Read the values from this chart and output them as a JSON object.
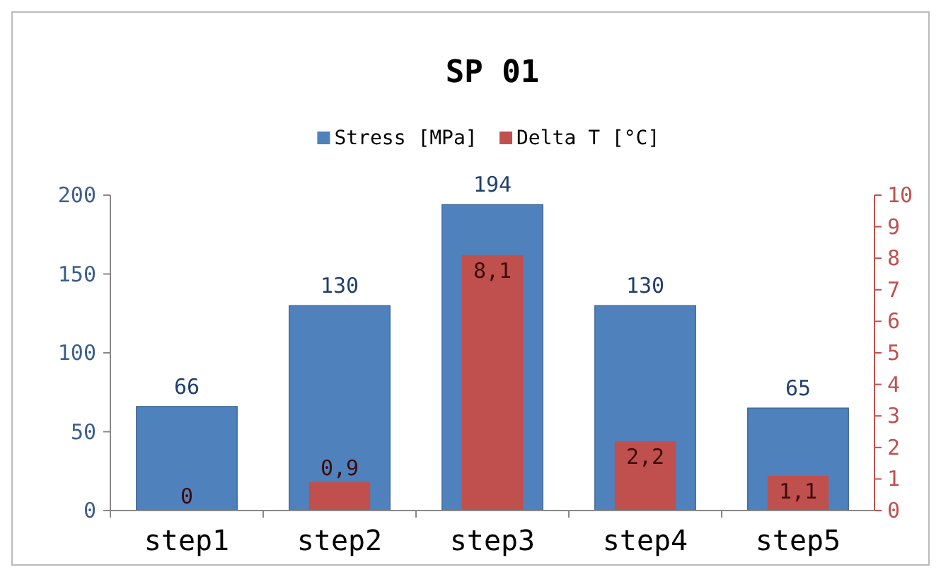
{
  "chart_data": {
    "type": "bar",
    "title": "SP 01",
    "categories": [
      "step1",
      "step2",
      "step3",
      "step4",
      "step5"
    ],
    "series": [
      {
        "name": "Stress [MPa]",
        "color": "#4f81bd",
        "values": [
          66,
          130,
          194,
          130,
          65
        ],
        "value_labels": [
          "66",
          "130",
          "194",
          "130",
          "65"
        ]
      },
      {
        "name": "Delta T [°C]",
        "color": "#c0504d",
        "axis": "y2",
        "values": [
          0,
          0.9,
          8.1,
          2.2,
          1.1
        ],
        "value_labels": [
          "0",
          "0,9",
          "8,1",
          "2,2",
          "1,1"
        ]
      }
    ],
    "ylim": [
      0,
      200
    ],
    "yticks": [
      0,
      50,
      100,
      150,
      200
    ],
    "y2lim": [
      0,
      10
    ],
    "y2ticks": [
      0,
      1,
      2,
      3,
      4,
      5,
      6,
      7,
      8,
      9,
      10
    ],
    "grid": false,
    "legend": "top"
  }
}
